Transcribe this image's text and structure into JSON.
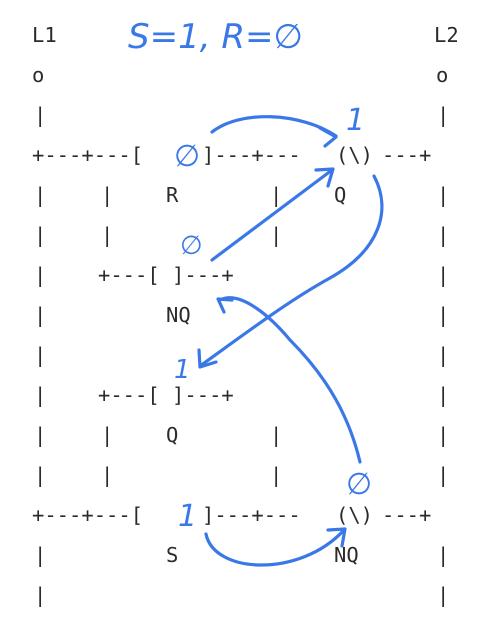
{
  "header": {
    "rail_left_label": "L1",
    "rail_right_label": "L2",
    "annotation": "S=1, R=∅"
  },
  "ladder": {
    "rung_top": {
      "contact_R": {
        "state_mark": "∅",
        "label": "R"
      },
      "coil_Q": {
        "symbol": "(\\)",
        "state_mark": "1",
        "label": "Q"
      }
    },
    "branch_nq": {
      "contact": {
        "state_mark": "∅",
        "label": "NQ"
      }
    },
    "branch_q": {
      "contact": {
        "state_mark": "1",
        "label": "Q"
      }
    },
    "rung_bottom": {
      "contact_S": {
        "state_mark": "1",
        "label": "S"
      },
      "coil_NQ": {
        "symbol": "(\\)",
        "state_mark": "∅",
        "label": "NQ"
      }
    }
  },
  "colors": {
    "ink": "#3b78e7",
    "text": "#2b2b2b",
    "background": "#ffffff"
  }
}
